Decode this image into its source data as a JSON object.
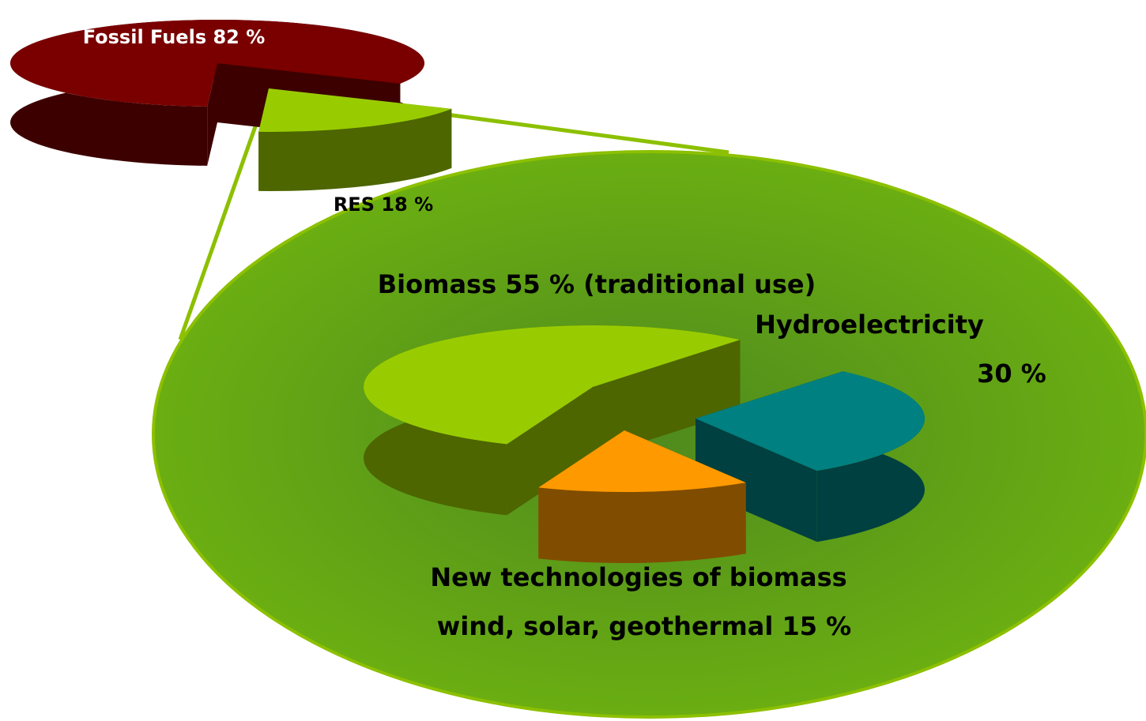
{
  "chart_data": [
    {
      "type": "pie3d",
      "labels": [
        [
          "Fossil Fuels 82 %"
        ],
        [
          "RES 18 %"
        ]
      ],
      "values": [
        82,
        18
      ],
      "colors": [
        "#7a0000",
        "#99cc00"
      ]
    },
    {
      "type": "pie3d",
      "labels": [
        [
          "Biomass 55 % (traditional use)"
        ],
        [
          "Hydroelectricity",
          "30 %"
        ],
        [
          "New technologies of biomass",
          "wind, solar, geothermal 15 %"
        ]
      ],
      "values": [
        55,
        30,
        15
      ],
      "colors": [
        "#99cc00",
        "#008080",
        "#ff9900"
      ]
    }
  ]
}
